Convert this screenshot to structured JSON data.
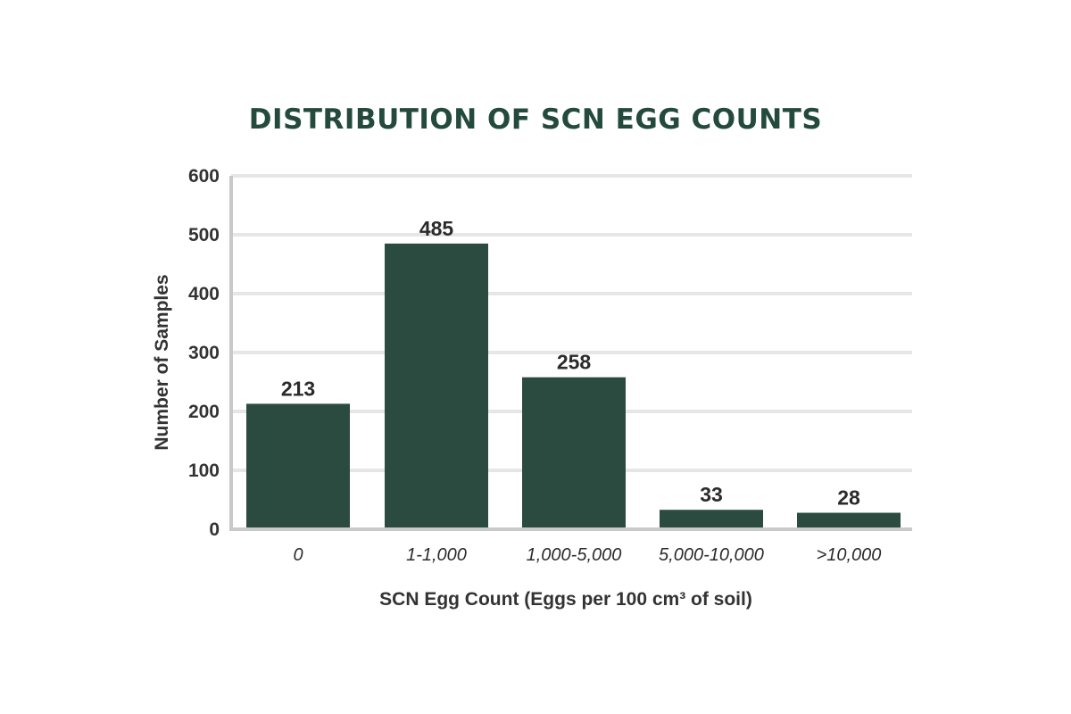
{
  "colors": {
    "bar": "#2b4a40",
    "title": "#234a3d",
    "grid": "#e6e6e6",
    "axis": "#c9c9c9",
    "text": "#2b2b2b"
  },
  "chart_data": {
    "type": "bar",
    "title": "DISTRIBUTION OF SCN EGG COUNTS",
    "xlabel": "SCN Egg Count (Eggs per 100 cm³ of soil)",
    "ylabel": "Number of Samples",
    "categories": [
      "0",
      "1-1,000",
      "1,000-5,000",
      "5,000-10,000",
      ">10,000"
    ],
    "values": [
      213,
      485,
      258,
      33,
      28
    ],
    "data_labels": [
      "213",
      "485",
      "258",
      "33",
      "28"
    ],
    "ylim": [
      0,
      600
    ],
    "yticks": [
      "0",
      "100",
      "200",
      "300",
      "400",
      "500",
      "600"
    ],
    "grid": true,
    "legend": "none"
  }
}
